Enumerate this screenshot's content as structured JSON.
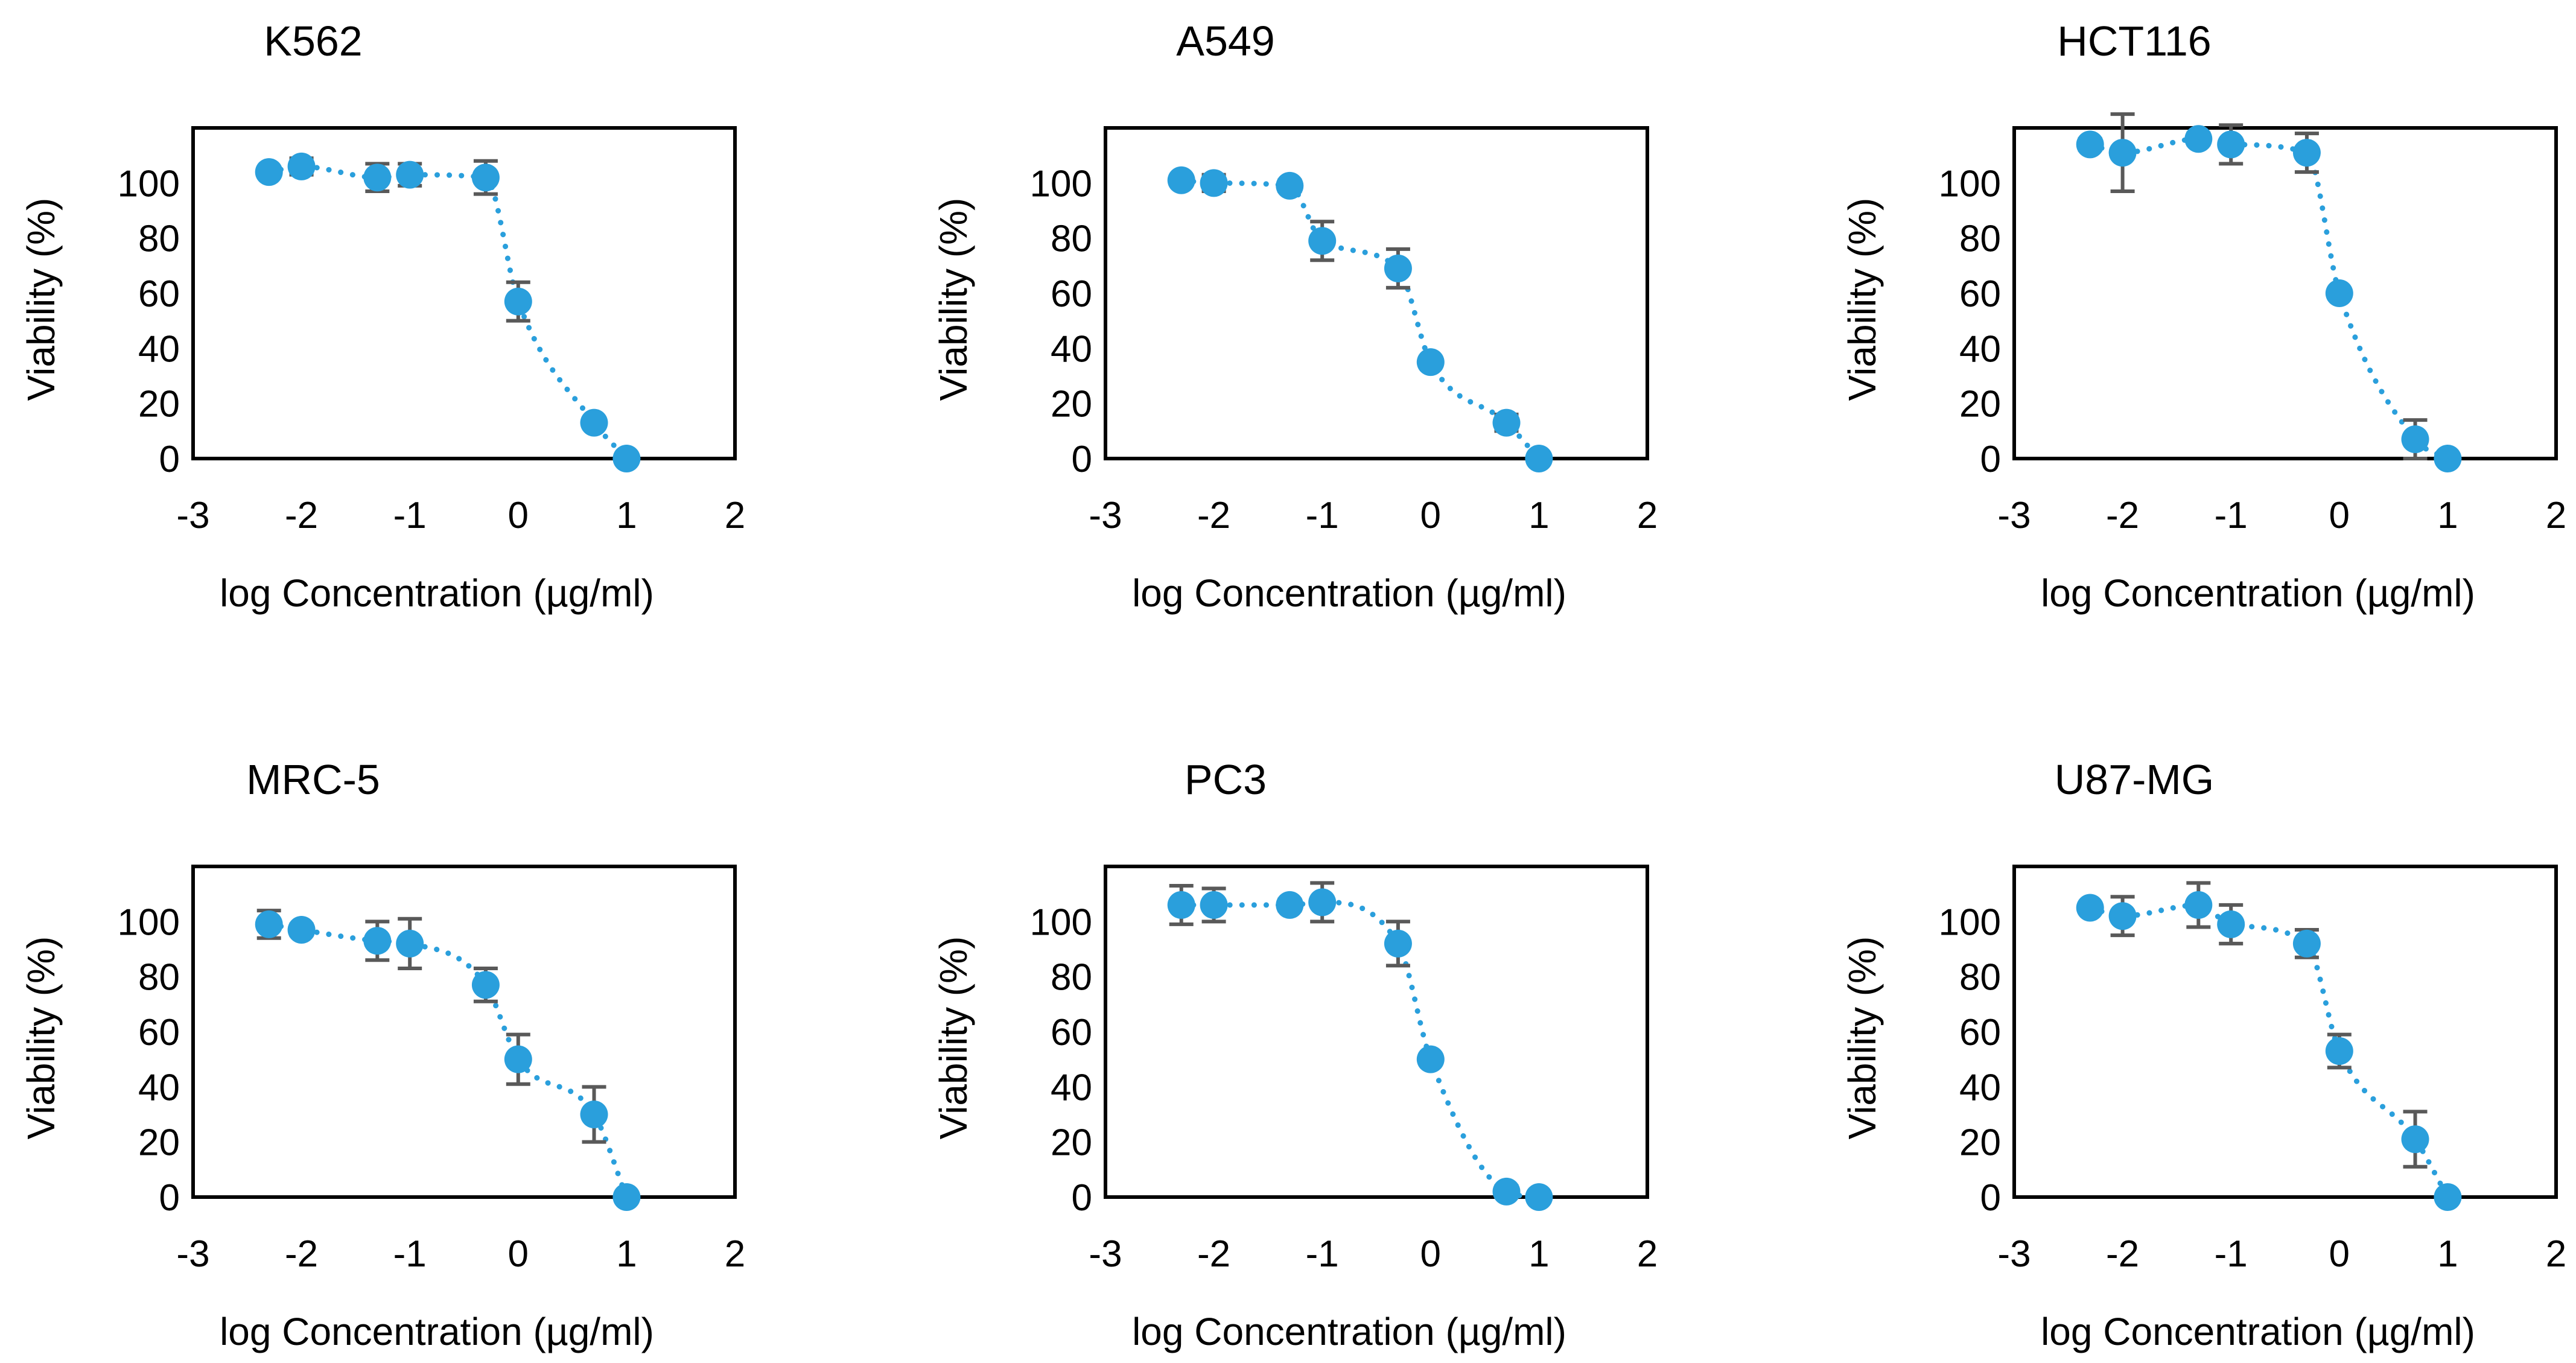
{
  "figure": {
    "common": {
      "xlabel": "log Concentration (µg/ml)",
      "ylabel": "Viability (%)",
      "xlim": [
        -3,
        2
      ],
      "ylim": [
        0,
        120
      ],
      "xticks": [
        -3,
        -2,
        -1,
        0,
        1,
        2
      ],
      "yticks": [
        0,
        20,
        40,
        60,
        80,
        100
      ],
      "marker_color": "#2a9fdc",
      "errorbar_color": "#595959"
    }
  },
  "chart_data": [
    {
      "type": "scatter",
      "title": "K562",
      "xlabel": "log Concentration (µg/ml)",
      "ylabel": "Viability (%)",
      "xlim": [
        -3,
        2
      ],
      "ylim": [
        0,
        120
      ],
      "x": [
        -2.3,
        -2.0,
        -1.3,
        -1.0,
        -0.3,
        0.0,
        0.7,
        1.0
      ],
      "y": [
        104,
        106,
        102,
        103,
        102,
        57,
        13,
        0
      ],
      "err": [
        1,
        3,
        5,
        4,
        6,
        7,
        1,
        0
      ]
    },
    {
      "type": "scatter",
      "title": "A549",
      "xlabel": "log Concentration (µg/ml)",
      "ylabel": "Viability (%)",
      "xlim": [
        -3,
        2
      ],
      "ylim": [
        0,
        120
      ],
      "x": [
        -2.3,
        -2.0,
        -1.3,
        -1.0,
        -0.3,
        0.0,
        0.7,
        1.0
      ],
      "y": [
        101,
        100,
        99,
        79,
        69,
        35,
        13,
        0
      ],
      "err": [
        1,
        3,
        2,
        7,
        7,
        1,
        3,
        0
      ]
    },
    {
      "type": "scatter",
      "title": "HCT116",
      "xlabel": "log Concentration (µg/ml)",
      "ylabel": "Viability (%)",
      "xlim": [
        -3,
        2
      ],
      "ylim": [
        0,
        120
      ],
      "x": [
        -2.3,
        -2.0,
        -1.3,
        -1.0,
        -0.3,
        0.0,
        0.7,
        1.0
      ],
      "y": [
        114,
        111,
        116,
        114,
        111,
        60,
        7,
        0
      ],
      "err": [
        2,
        14,
        2,
        7,
        7,
        1,
        7,
        0
      ]
    },
    {
      "type": "scatter",
      "title": "MRC-5",
      "xlabel": "log Concentration (µg/ml)",
      "ylabel": "Viability (%)",
      "xlim": [
        -3,
        2
      ],
      "ylim": [
        0,
        120
      ],
      "x": [
        -2.3,
        -2.0,
        -1.3,
        -1.0,
        -0.3,
        0.0,
        0.7,
        1.0
      ],
      "y": [
        99,
        97,
        93,
        92,
        77,
        50,
        30,
        0
      ],
      "err": [
        5,
        2,
        7,
        9,
        6,
        9,
        10,
        0
      ]
    },
    {
      "type": "scatter",
      "title": "PC3",
      "xlabel": "log Concentration (µg/ml)",
      "ylabel": "Viability (%)",
      "xlim": [
        -3,
        2
      ],
      "ylim": [
        0,
        120
      ],
      "x": [
        -2.3,
        -2.0,
        -1.3,
        -1.0,
        -0.3,
        0.0,
        0.7,
        1.0
      ],
      "y": [
        106,
        106,
        106,
        107,
        92,
        50,
        2,
        0
      ],
      "err": [
        7,
        6,
        2,
        7,
        8,
        1,
        2,
        0
      ]
    },
    {
      "type": "scatter",
      "title": "U87-MG",
      "xlabel": "log Concentration (µg/ml)",
      "ylabel": "Viability (%)",
      "xlim": [
        -3,
        2
      ],
      "ylim": [
        0,
        120
      ],
      "x": [
        -2.3,
        -2.0,
        -1.3,
        -1.0,
        -0.3,
        0.0,
        0.7,
        1.0
      ],
      "y": [
        105,
        102,
        106,
        99,
        92,
        53,
        21,
        0
      ],
      "err": [
        1,
        7,
        8,
        7,
        5,
        6,
        10,
        0
      ]
    }
  ]
}
